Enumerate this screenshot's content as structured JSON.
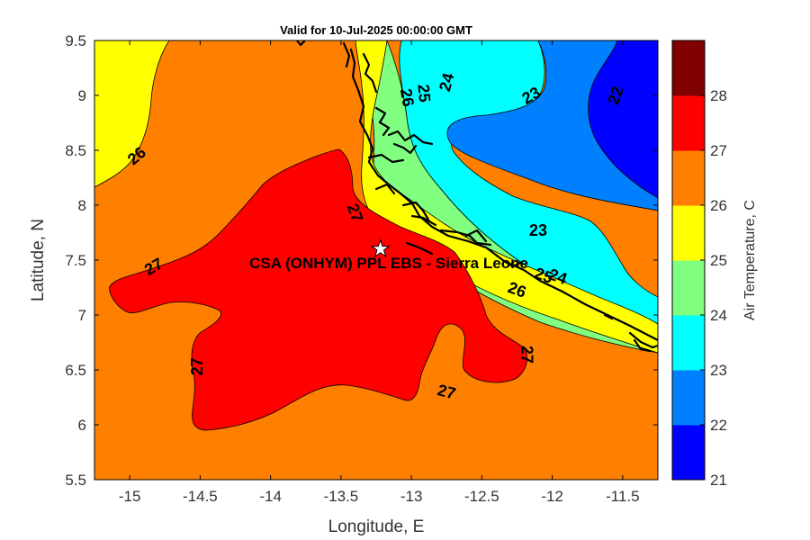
{
  "chart_data": {
    "type": "contour",
    "title": "Valid for 10-Jul-2025 00:00:00 GMT",
    "xlabel": "Longitude, E",
    "ylabel": "Latitude, N",
    "xlim": [
      -15.25,
      -11.25
    ],
    "ylim": [
      5.5,
      9.5
    ],
    "xticks": [
      -15,
      -14.5,
      -14,
      -13.5,
      -13,
      -12.5,
      -12,
      -11.5
    ],
    "yticks": [
      5.5,
      6,
      6.5,
      7,
      7.5,
      8,
      8.5,
      9,
      9.5
    ],
    "colorbar": {
      "label": "Air Temperature, C",
      "ticks": [
        21,
        22,
        23,
        24,
        25,
        26,
        27,
        28
      ],
      "colors": [
        "#0000ff",
        "#0080ff",
        "#00ffff",
        "#80ff80",
        "#ffff00",
        "#ff8000",
        "#ff0000",
        "#800000"
      ]
    },
    "site": {
      "name": "CSA (ONHYM) PPL EBS - Sierra Leone",
      "lon": -13.22,
      "lat": 7.6
    },
    "contour_labels": [
      {
        "text": "26",
        "lon": -14.95,
        "lat": 8.45,
        "angle": -40
      },
      {
        "text": "27",
        "lon": -14.83,
        "lat": 7.44,
        "angle": -30
      },
      {
        "text": "27",
        "lon": -14.52,
        "lat": 6.53,
        "angle": -90
      },
      {
        "text": "27",
        "lon": -13.4,
        "lat": 7.93,
        "angle": 70
      },
      {
        "text": "27",
        "lon": -12.75,
        "lat": 6.3,
        "angle": 15
      },
      {
        "text": "27",
        "lon": -12.18,
        "lat": 6.64,
        "angle": 90
      },
      {
        "text": "26",
        "lon": -13.03,
        "lat": 8.98,
        "angle": 80
      },
      {
        "text": "25",
        "lon": -12.91,
        "lat": 9.02,
        "angle": 85
      },
      {
        "text": "24",
        "lon": -12.75,
        "lat": 9.12,
        "angle": -75
      },
      {
        "text": "23",
        "lon": -12.15,
        "lat": 9.0,
        "angle": -30
      },
      {
        "text": "22",
        "lon": -11.55,
        "lat": 9.0,
        "angle": -70
      },
      {
        "text": "23",
        "lon": -12.1,
        "lat": 7.77,
        "angle": 0
      },
      {
        "text": "26",
        "lon": -12.25,
        "lat": 7.23,
        "angle": 20
      },
      {
        "text": "25",
        "lon": -12.06,
        "lat": 7.36,
        "angle": 20
      },
      {
        "text": "24",
        "lon": -11.96,
        "lat": 7.35,
        "angle": 20
      }
    ]
  }
}
